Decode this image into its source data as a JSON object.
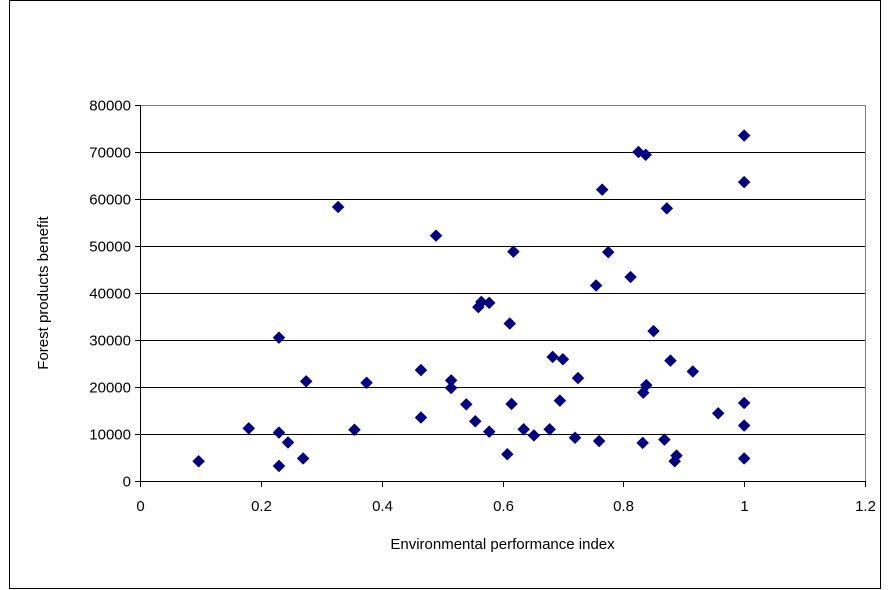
{
  "chart_data": {
    "type": "scatter",
    "title": "",
    "xlabel": "Environmental performance index",
    "ylabel": "Forest products benefit",
    "xlim": [
      0,
      1.2
    ],
    "ylim": [
      0,
      80000
    ],
    "x_ticks": [
      0,
      0.2,
      0.4,
      0.6,
      0.8,
      1,
      1.2
    ],
    "x_tick_labels": [
      "0",
      "0.2",
      "0.4",
      "0.6",
      "0.8",
      "1",
      "1.2"
    ],
    "y_ticks": [
      0,
      10000,
      20000,
      30000,
      40000,
      50000,
      60000,
      70000,
      80000
    ],
    "y_tick_labels": [
      "0",
      "10000",
      "20000",
      "30000",
      "40000",
      "50000",
      "60000",
      "70000",
      "80000"
    ],
    "grid": "horizontal major gridlines",
    "legend": "none",
    "marker": "diamond",
    "marker_color": "#000080",
    "series": [
      {
        "points": [
          [
            0.097,
            4200
          ],
          [
            0.18,
            11200
          ],
          [
            0.23,
            30500
          ],
          [
            0.23,
            10300
          ],
          [
            0.23,
            3200
          ],
          [
            0.245,
            8200
          ],
          [
            0.27,
            4800
          ],
          [
            0.275,
            21200
          ],
          [
            0.328,
            58300
          ],
          [
            0.355,
            10900
          ],
          [
            0.375,
            20900
          ],
          [
            0.465,
            23600
          ],
          [
            0.465,
            13500
          ],
          [
            0.49,
            52200
          ],
          [
            0.515,
            21400
          ],
          [
            0.515,
            19800
          ],
          [
            0.54,
            16300
          ],
          [
            0.555,
            12700
          ],
          [
            0.56,
            37000
          ],
          [
            0.565,
            38100
          ],
          [
            0.578,
            37900
          ],
          [
            0.578,
            10500
          ],
          [
            0.608,
            5700
          ],
          [
            0.612,
            33500
          ],
          [
            0.615,
            16400
          ],
          [
            0.618,
            48800
          ],
          [
            0.635,
            11000
          ],
          [
            0.652,
            9700
          ],
          [
            0.678,
            11000
          ],
          [
            0.683,
            26400
          ],
          [
            0.695,
            17100
          ],
          [
            0.7,
            25900
          ],
          [
            0.72,
            9200
          ],
          [
            0.725,
            21900
          ],
          [
            0.755,
            41600
          ],
          [
            0.76,
            8500
          ],
          [
            0.765,
            62000
          ],
          [
            0.775,
            48700
          ],
          [
            0.812,
            43400
          ],
          [
            0.825,
            70000
          ],
          [
            0.832,
            8100
          ],
          [
            0.833,
            18800
          ],
          [
            0.837,
            69400
          ],
          [
            0.838,
            20400
          ],
          [
            0.85,
            31900
          ],
          [
            0.868,
            8800
          ],
          [
            0.872,
            58000
          ],
          [
            0.878,
            25600
          ],
          [
            0.885,
            4200
          ],
          [
            0.888,
            5400
          ],
          [
            0.915,
            23300
          ],
          [
            0.957,
            14400
          ],
          [
            1.0,
            73500
          ],
          [
            1.0,
            63600
          ],
          [
            1.0,
            16600
          ],
          [
            1.0,
            11800
          ],
          [
            1.0,
            4800
          ]
        ]
      }
    ]
  }
}
